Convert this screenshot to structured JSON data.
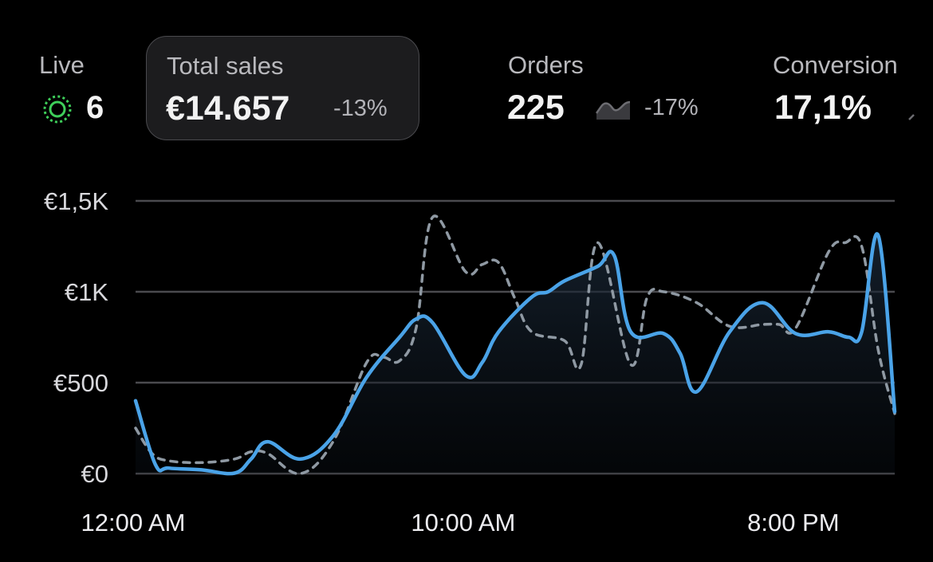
{
  "header": {
    "live": {
      "label": "Live",
      "count": "6",
      "status_color": "#3ecf5a"
    },
    "total_sales": {
      "label": "Total sales",
      "value": "€14.657",
      "delta": "-13%",
      "selected": true
    },
    "orders": {
      "label": "Orders",
      "value": "225",
      "delta": "-17%",
      "trend_icon": "sparkline-icon"
    },
    "conversion": {
      "label": "Conversion",
      "value": "17,1%",
      "trend_icon": "sparkline-icon"
    }
  },
  "chart_data": {
    "type": "line",
    "x_tick_labels": [
      "12:00 AM",
      "10:00 AM",
      "8:00 PM"
    ],
    "x_ticks_hours": [
      0,
      10,
      20
    ],
    "y_tick_labels": [
      "€0",
      "€500",
      "€1K",
      "€1,5K"
    ],
    "y_ticks": [
      0,
      500,
      1000,
      1500
    ],
    "xlim": [
      0,
      23
    ],
    "ylim": [
      0,
      1500
    ],
    "grid": true,
    "series": [
      {
        "style": "solid",
        "color": "#4aa3e8",
        "x": [
          0,
          0.6,
          1,
          2,
          3,
          3.5,
          4,
          5,
          6,
          7,
          8,
          8.5,
          9,
          10,
          10.5,
          11,
          12,
          12.5,
          13,
          14,
          14.5,
          15,
          16,
          16.5,
          17,
          18,
          19,
          20,
          21,
          21.6,
          22,
          22.5,
          23
        ],
        "y": [
          400,
          50,
          30,
          20,
          2,
          80,
          175,
          80,
          210,
          530,
          750,
          850,
          830,
          540,
          610,
          780,
          970,
          1000,
          1060,
          1140,
          1200,
          780,
          770,
          660,
          450,
          780,
          940,
          770,
          780,
          750,
          780,
          1310,
          340
        ]
      },
      {
        "style": "dashed",
        "color": "#8f99a3",
        "x": [
          0,
          0.5,
          1,
          2,
          3,
          3.5,
          4,
          5,
          6,
          7,
          7.5,
          8,
          8.5,
          9,
          10,
          10.5,
          11,
          11.5,
          12,
          13,
          13.5,
          14,
          15,
          15.5,
          16,
          17,
          18,
          19,
          19.5,
          20,
          21,
          21.5,
          22,
          22.5,
          23
        ],
        "y": [
          250,
          110,
          70,
          60,
          80,
          120,
          110,
          0,
          180,
          610,
          640,
          620,
          800,
          1410,
          1110,
          1150,
          1160,
          960,
          780,
          730,
          600,
          1270,
          600,
          970,
          1000,
          940,
          810,
          820,
          820,
          800,
          1220,
          1270,
          1250,
          680,
          330
        ]
      }
    ]
  }
}
